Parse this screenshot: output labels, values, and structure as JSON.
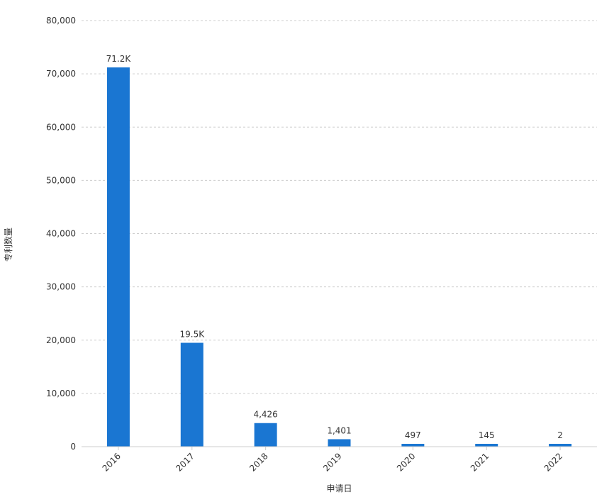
{
  "chart_data": {
    "type": "bar",
    "xlabel": "申请日",
    "ylabel": "专利数量",
    "categories": [
      "2016",
      "2017",
      "2018",
      "2019",
      "2020",
      "2021",
      "2022"
    ],
    "values": [
      71200,
      19500,
      4426,
      1401,
      497,
      145,
      2
    ],
    "value_labels": [
      "71.2K",
      "19.5K",
      "4,426",
      "1,401",
      "497",
      "145",
      "2"
    ],
    "ylim": [
      0,
      80000
    ],
    "yticks": [
      0,
      10000,
      20000,
      30000,
      40000,
      50000,
      60000,
      70000,
      80000
    ],
    "ytick_labels": [
      "0",
      "10,000",
      "20,000",
      "30,000",
      "40,000",
      "50,000",
      "60,000",
      "70,000",
      "80,000"
    ],
    "grid": true,
    "bar_color": "#1a76d2",
    "grid_color": "#cccccc",
    "text_color": "#333333"
  }
}
